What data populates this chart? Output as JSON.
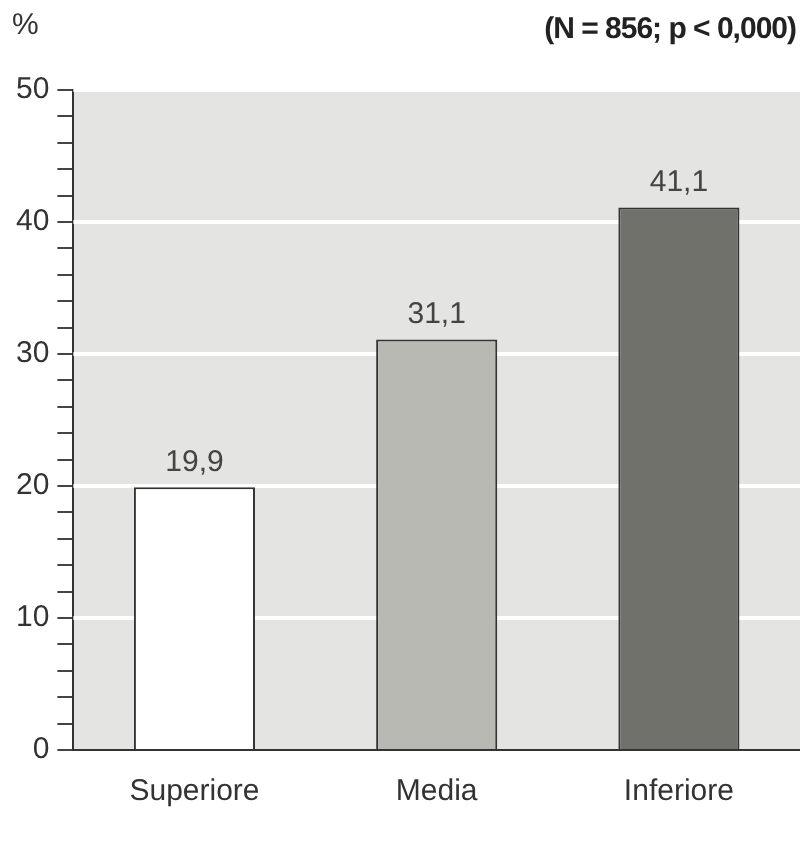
{
  "chart_data": {
    "type": "bar",
    "title": "(N = 856; p < 0,000)",
    "ylabel": "%",
    "categories": [
      "Superiore",
      "Media",
      "Inferiore"
    ],
    "values": [
      19.9,
      31.1,
      41.1
    ],
    "colors": [
      "#ffffff",
      "#b9b9b4",
      "#6f716a"
    ],
    "value_labels": [
      "19,9",
      "31,1",
      "41,1"
    ],
    "ylim": [
      0,
      50
    ],
    "yticks": [
      0,
      {
        "value": 2,
        "label": null
      },
      {
        "value": 4,
        "label": null
      },
      {
        "value": 6,
        "label": null
      },
      {
        "value": 8,
        "label": null
      },
      10,
      {
        "value": 12,
        "label": null
      },
      {
        "value": 14,
        "label": null
      },
      {
        "value": 16,
        "label": null
      },
      {
        "value": 18,
        "label": null
      },
      20,
      {
        "value": 22,
        "label": null
      },
      {
        "value": 24,
        "label": null
      },
      {
        "value": 26,
        "label": null
      },
      {
        "value": 28,
        "label": null
      },
      30,
      {
        "value": 32,
        "label": null
      },
      {
        "value": 34,
        "label": null
      },
      {
        "value": 36,
        "label": null
      },
      {
        "value": 38,
        "label": null
      },
      40,
      {
        "value": 42,
        "label": null
      },
      {
        "value": 44,
        "label": null
      },
      {
        "value": 46,
        "label": null
      },
      {
        "value": 48,
        "label": null
      },
      50
    ],
    "grid": "y",
    "legend": false
  }
}
